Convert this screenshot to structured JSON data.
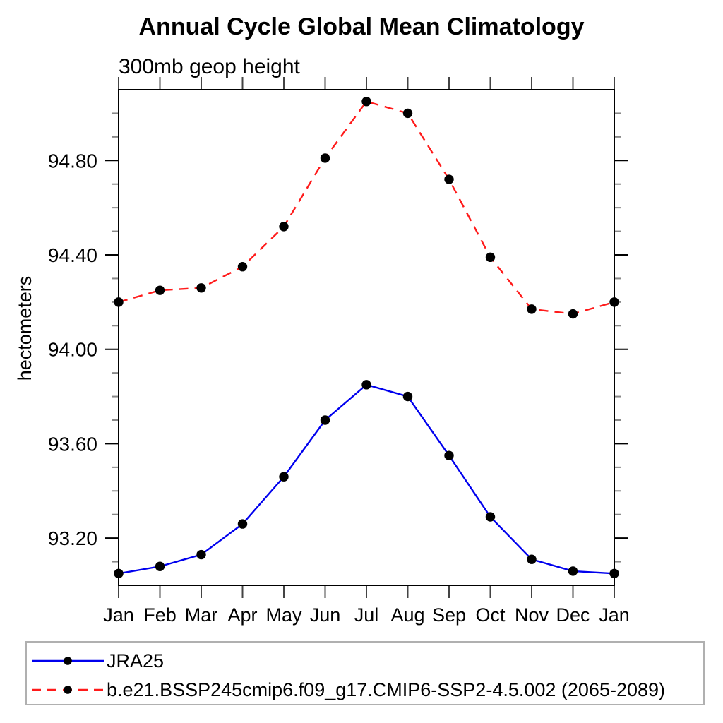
{
  "chart_data": {
    "type": "line",
    "title": "Annual Cycle Global Mean Climatology",
    "subtitle": "300mb geop height",
    "ylabel": "hectometers",
    "xlabel": "",
    "x_tick_labels": [
      "Jan",
      "Feb",
      "Mar",
      "Apr",
      "May",
      "Jun",
      "Jul",
      "Aug",
      "Sep",
      "Oct",
      "Nov",
      "Dec",
      "Jan"
    ],
    "ylim": [
      93.0,
      95.1
    ],
    "y_major_ticks": [
      93.2,
      93.6,
      94.0,
      94.4,
      94.8
    ],
    "y_minor_step": 0.1,
    "grid": "off",
    "legend_position": "bottom-left",
    "axis_color": "#000000",
    "major_tick_color": "#000000",
    "minor_tick_color": "#888888",
    "legend_border_color": "#b0b0b0",
    "marker_color": "#000000",
    "series": [
      {
        "name": "JRA25",
        "color": "#0000ee",
        "style": "solid",
        "marker": "filled-circle",
        "values": [
          93.05,
          93.08,
          93.13,
          93.26,
          93.46,
          93.7,
          93.85,
          93.8,
          93.55,
          93.29,
          93.11,
          93.06,
          93.05
        ]
      },
      {
        "name": "b.e21.BSSP245cmip6.f09_g17.CMIP6-SSP2-4.5.002 (2065-2089)",
        "color": "#ff1a1a",
        "style": "dashed",
        "marker": "filled-circle",
        "values": [
          94.2,
          94.25,
          94.26,
          94.35,
          94.52,
          94.81,
          95.05,
          95.0,
          94.72,
          94.39,
          94.17,
          94.15,
          94.2
        ]
      }
    ]
  }
}
